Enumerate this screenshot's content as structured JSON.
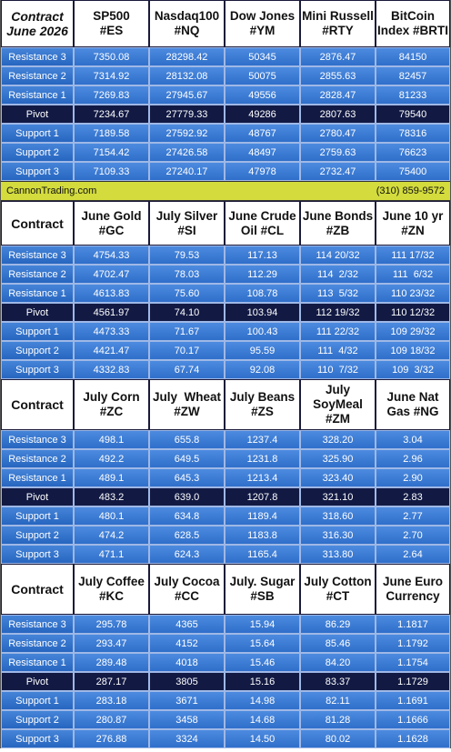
{
  "sections": [
    {
      "header": [
        [
          "Contract",
          "June 2026"
        ],
        [
          "SP500",
          "#ES"
        ],
        [
          "Nasdaq100",
          "#NQ"
        ],
        [
          "Dow Jones",
          "#YM"
        ],
        [
          "Mini Russell",
          "#RTY"
        ],
        [
          "BitCoin",
          "Index #BRTI"
        ]
      ],
      "rows": [
        {
          "label": "Resistance 3",
          "values": [
            "7350.08",
            "28298.42",
            "50345",
            "2876.47",
            "84150"
          ]
        },
        {
          "label": "Resistance 2",
          "values": [
            "7314.92",
            "28132.08",
            "50075",
            "2855.63",
            "82457"
          ]
        },
        {
          "label": "Resistance 1",
          "values": [
            "7269.83",
            "27945.67",
            "49556",
            "2828.47",
            "81233"
          ]
        },
        {
          "label": "Pivot",
          "values": [
            "7234.67",
            "27779.33",
            "49286",
            "2807.63",
            "79540"
          ]
        },
        {
          "label": "Support 1",
          "values": [
            "7189.58",
            "27592.92",
            "48767",
            "2780.47",
            "78316"
          ]
        },
        {
          "label": "Support 2",
          "values": [
            "7154.42",
            "27426.58",
            "48497",
            "2759.63",
            "76623"
          ]
        },
        {
          "label": "Support 3",
          "values": [
            "7109.33",
            "27240.17",
            "47978",
            "2732.47",
            "75400"
          ]
        }
      ]
    },
    {
      "header": [
        [
          "Contract"
        ],
        [
          "June Gold",
          "#GC"
        ],
        [
          "July Silver",
          "#SI"
        ],
        [
          "June Crude",
          "Oil #CL"
        ],
        [
          "June Bonds",
          "#ZB"
        ],
        [
          "June 10 yr",
          "#ZN"
        ]
      ],
      "rows": [
        {
          "label": "Resistance 3",
          "values": [
            "4754.33",
            "79.53",
            "117.13",
            "114 20/32",
            "111 17/32"
          ]
        },
        {
          "label": "Resistance 2",
          "values": [
            "4702.47",
            "78.03",
            "112.29",
            "114  2/32",
            "111  6/32"
          ]
        },
        {
          "label": "Resistance 1",
          "values": [
            "4613.83",
            "75.60",
            "108.78",
            "113  5/32",
            "110 23/32"
          ]
        },
        {
          "label": "Pivot",
          "values": [
            "4561.97",
            "74.10",
            "103.94",
            "112 19/32",
            "110 12/32"
          ]
        },
        {
          "label": "Support 1",
          "values": [
            "4473.33",
            "71.67",
            "100.43",
            "111 22/32",
            "109 29/32"
          ]
        },
        {
          "label": "Support 2",
          "values": [
            "4421.47",
            "70.17",
            "95.59",
            "111  4/32",
            "109 18/32"
          ]
        },
        {
          "label": "Support 3",
          "values": [
            "4332.83",
            "67.74",
            "92.08",
            "110  7/32",
            "109  3/32"
          ]
        }
      ]
    },
    {
      "header": [
        [
          "Contract"
        ],
        [
          "July Corn",
          "#ZC"
        ],
        [
          "July  Wheat",
          "#ZW"
        ],
        [
          "July Beans",
          "#ZS"
        ],
        [
          "July",
          "SoyMeal",
          "#ZM"
        ],
        [
          "June Nat",
          "Gas #NG"
        ]
      ],
      "rows": [
        {
          "label": "Resistance 3",
          "values": [
            "498.1",
            "655.8",
            "1237.4",
            "328.20",
            "3.04"
          ]
        },
        {
          "label": "Resistance 2",
          "values": [
            "492.2",
            "649.5",
            "1231.8",
            "325.90",
            "2.96"
          ]
        },
        {
          "label": "Resistance 1",
          "values": [
            "489.1",
            "645.3",
            "1213.4",
            "323.40",
            "2.90"
          ]
        },
        {
          "label": "Pivot",
          "values": [
            "483.2",
            "639.0",
            "1207.8",
            "321.10",
            "2.83"
          ]
        },
        {
          "label": "Support 1",
          "values": [
            "480.1",
            "634.8",
            "1189.4",
            "318.60",
            "2.77"
          ]
        },
        {
          "label": "Support 2",
          "values": [
            "474.2",
            "628.5",
            "1183.8",
            "316.30",
            "2.70"
          ]
        },
        {
          "label": "Support 3",
          "values": [
            "471.1",
            "624.3",
            "1165.4",
            "313.80",
            "2.64"
          ]
        }
      ]
    },
    {
      "header": [
        [
          "Contract"
        ],
        [
          "July Coffee",
          "#KC"
        ],
        [
          "July Cocoa",
          "#CC"
        ],
        [
          "July. Sugar",
          "#SB"
        ],
        [
          "July Cotton",
          "#CT"
        ],
        [
          "June Euro",
          "Currency"
        ]
      ],
      "rows": [
        {
          "label": "Resistance 3",
          "values": [
            "295.78",
            "4365",
            "15.94",
            "86.29",
            "1.1817"
          ]
        },
        {
          "label": "Resistance 2",
          "values": [
            "293.47",
            "4152",
            "15.64",
            "85.46",
            "1.1792"
          ]
        },
        {
          "label": "Resistance 1",
          "values": [
            "289.48",
            "4018",
            "15.46",
            "84.20",
            "1.1754"
          ]
        },
        {
          "label": "Pivot",
          "values": [
            "287.17",
            "3805",
            "15.16",
            "83.37",
            "1.1729"
          ]
        },
        {
          "label": "Support 1",
          "values": [
            "283.18",
            "3671",
            "14.98",
            "82.11",
            "1.1691"
          ]
        },
        {
          "label": "Support 2",
          "values": [
            "280.87",
            "3458",
            "14.68",
            "81.28",
            "1.1666"
          ]
        },
        {
          "label": "Support 3",
          "values": [
            "276.88",
            "3324",
            "14.50",
            "80.02",
            "1.1628"
          ]
        }
      ]
    }
  ],
  "banner": {
    "left": "CannonTrading.com",
    "right": "(310) 859-9572"
  }
}
